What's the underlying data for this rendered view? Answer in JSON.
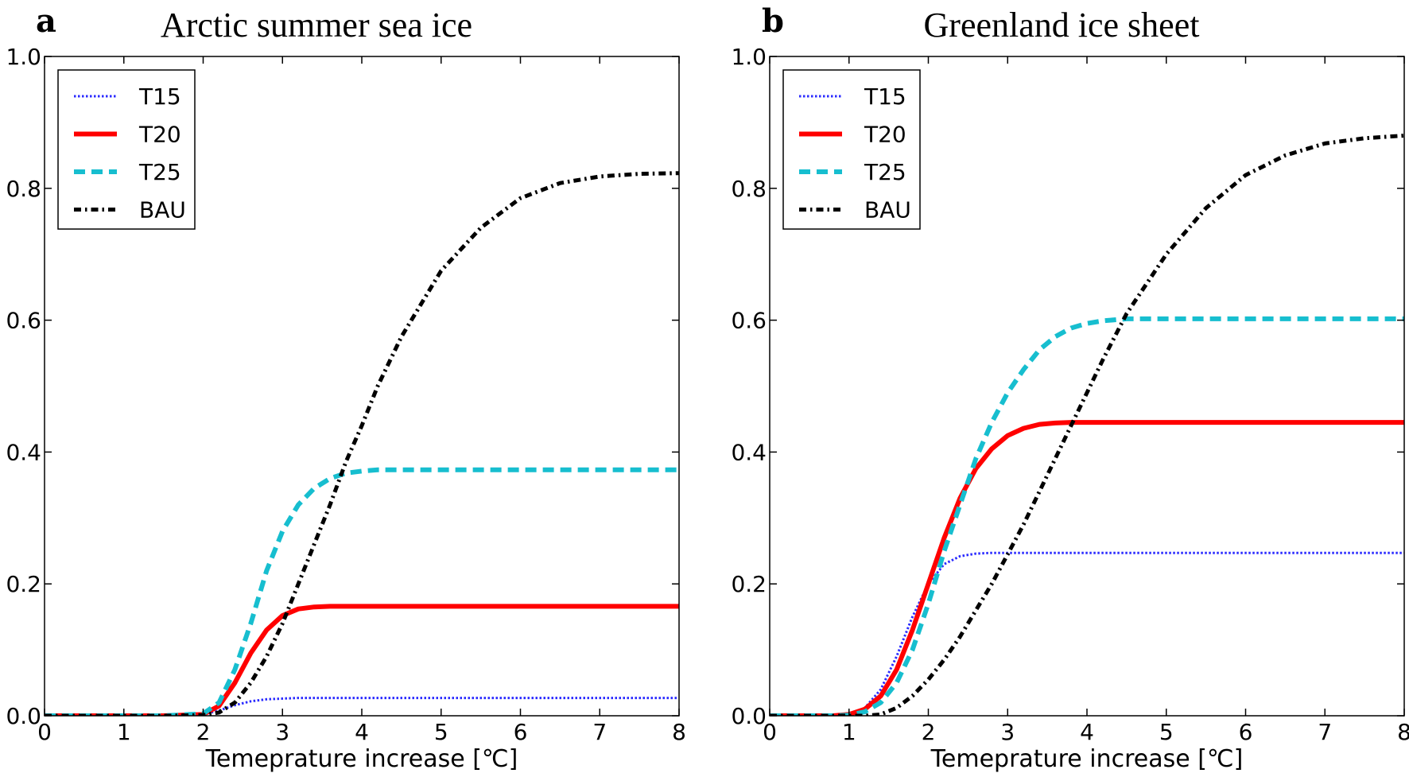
{
  "chart_data": [
    {
      "type": "line",
      "panel_label": "a",
      "title": "Arctic summer sea ice",
      "xlabel": "Temeprature increase [℃]",
      "ylabel": "",
      "xlim": [
        0,
        8
      ],
      "ylim": [
        0,
        1.0
      ],
      "xticks": [
        "0",
        "1",
        "2",
        "3",
        "4",
        "5",
        "6",
        "7",
        "8"
      ],
      "yticks": [
        "0.0",
        "0.2",
        "0.4",
        "0.6",
        "0.8",
        "1.0"
      ],
      "legend_position": "top-left",
      "grid": false,
      "x": [
        0,
        0.5,
        1,
        1.5,
        2,
        2.2,
        2.4,
        2.6,
        2.8,
        3,
        3.2,
        3.4,
        3.6,
        3.8,
        4,
        4.2,
        4.5,
        5,
        5.5,
        6,
        6.5,
        7,
        7.5,
        8
      ],
      "series": [
        {
          "name": "T15",
          "color": "#2b2bff",
          "style": "dotted",
          "values": [
            0,
            0,
            0,
            0,
            0.002,
            0.008,
            0.016,
            0.022,
            0.025,
            0.026,
            0.027,
            0.027,
            0.027,
            0.027,
            0.027,
            0.027,
            0.027,
            0.027,
            0.027,
            0.027,
            0.027,
            0.027,
            0.027,
            0.027
          ]
        },
        {
          "name": "T20",
          "color": "#ff0000",
          "style": "solid",
          "values": [
            0,
            0,
            0,
            0,
            0.002,
            0.015,
            0.05,
            0.095,
            0.13,
            0.152,
            0.162,
            0.165,
            0.166,
            0.166,
            0.166,
            0.166,
            0.166,
            0.166,
            0.166,
            0.166,
            0.166,
            0.166,
            0.166,
            0.166
          ]
        },
        {
          "name": "T25",
          "color": "#17becf",
          "style": "dashed",
          "values": [
            0,
            0,
            0,
            0,
            0.003,
            0.02,
            0.07,
            0.14,
            0.22,
            0.28,
            0.32,
            0.345,
            0.36,
            0.368,
            0.371,
            0.373,
            0.373,
            0.373,
            0.373,
            0.373,
            0.373,
            0.373,
            0.373,
            0.373
          ]
        },
        {
          "name": "BAU",
          "color": "#000000",
          "style": "dashdot",
          "values": [
            0,
            0,
            0,
            0,
            0.001,
            0.005,
            0.02,
            0.05,
            0.09,
            0.14,
            0.2,
            0.26,
            0.32,
            0.385,
            0.44,
            0.5,
            0.575,
            0.675,
            0.74,
            0.785,
            0.808,
            0.818,
            0.822,
            0.823
          ]
        }
      ]
    },
    {
      "type": "line",
      "panel_label": "b",
      "title": "Greenland ice sheet",
      "xlabel": "Temeprature increase [℃]",
      "ylabel": "",
      "xlim": [
        0,
        8
      ],
      "ylim": [
        0,
        1.0
      ],
      "xticks": [
        "0",
        "1",
        "2",
        "3",
        "4",
        "5",
        "6",
        "7",
        "8"
      ],
      "yticks": [
        "0.0",
        "0.2",
        "0.4",
        "0.6",
        "0.8",
        "1.0"
      ],
      "legend_position": "top-left",
      "grid": false,
      "x": [
        0,
        0.5,
        0.8,
        1,
        1.2,
        1.4,
        1.6,
        1.8,
        2,
        2.2,
        2.4,
        2.6,
        2.8,
        3,
        3.2,
        3.4,
        3.6,
        3.8,
        4,
        4.2,
        4.5,
        5,
        5.5,
        6,
        6.5,
        7,
        7.5,
        8
      ],
      "series": [
        {
          "name": "T15",
          "color": "#2b2bff",
          "style": "dotted",
          "values": [
            0,
            0,
            0,
            0.002,
            0.012,
            0.04,
            0.09,
            0.15,
            0.2,
            0.23,
            0.242,
            0.246,
            0.247,
            0.247,
            0.247,
            0.247,
            0.247,
            0.247,
            0.247,
            0.247,
            0.247,
            0.247,
            0.247,
            0.247,
            0.247,
            0.247,
            0.247,
            0.247
          ]
        },
        {
          "name": "T20",
          "color": "#ff0000",
          "style": "solid",
          "values": [
            0,
            0,
            0,
            0.002,
            0.01,
            0.03,
            0.07,
            0.13,
            0.2,
            0.27,
            0.33,
            0.375,
            0.405,
            0.425,
            0.436,
            0.442,
            0.444,
            0.445,
            0.445,
            0.445,
            0.445,
            0.445,
            0.445,
            0.445,
            0.445,
            0.445,
            0.445,
            0.445
          ]
        },
        {
          "name": "T25",
          "color": "#17becf",
          "style": "dashed",
          "values": [
            0,
            0,
            0,
            0.001,
            0.006,
            0.02,
            0.05,
            0.1,
            0.17,
            0.25,
            0.32,
            0.39,
            0.445,
            0.49,
            0.525,
            0.555,
            0.575,
            0.588,
            0.595,
            0.599,
            0.602,
            0.602,
            0.602,
            0.602,
            0.602,
            0.602,
            0.602,
            0.602
          ]
        },
        {
          "name": "BAU",
          "color": "#000000",
          "style": "dashdot",
          "values": [
            0,
            0,
            0,
            0,
            0,
            0.002,
            0.012,
            0.03,
            0.055,
            0.085,
            0.12,
            0.16,
            0.2,
            0.245,
            0.29,
            0.34,
            0.39,
            0.44,
            0.49,
            0.54,
            0.61,
            0.7,
            0.77,
            0.82,
            0.85,
            0.868,
            0.876,
            0.88
          ]
        }
      ]
    }
  ]
}
